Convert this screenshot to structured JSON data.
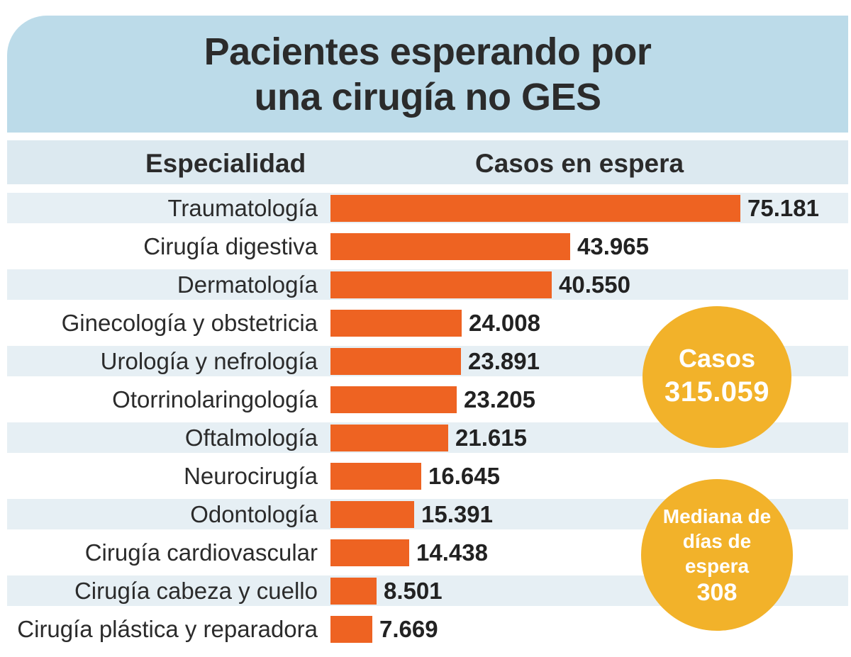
{
  "title": {
    "line1": "Pacientes esperando por",
    "line2": "una cirugía no GES"
  },
  "headers": {
    "category": "Especialidad",
    "value": "Casos en espera"
  },
  "chart_data": {
    "type": "bar",
    "orientation": "horizontal",
    "title": "Pacientes esperando por una cirugía no GES",
    "xlabel": "Casos en espera",
    "ylabel": "Especialidad",
    "categories": [
      "Traumatología",
      "Cirugía digestiva",
      "Dermatología",
      "Ginecología y obstetricia",
      "Urología y nefrología",
      "Otorrinolaringología",
      "Oftalmología",
      "Neurocirugía",
      "Odontología",
      "Cirugía cardiovascular",
      "Cirugía cabeza y cuello",
      "Cirugía plástica y reparadora"
    ],
    "values": [
      75181,
      43965,
      40550,
      24008,
      23891,
      23205,
      21615,
      16645,
      15391,
      14438,
      8501,
      7669
    ],
    "value_labels": [
      "75.181",
      "43.965",
      "40.550",
      "24.008",
      "23.891",
      "23.205",
      "21.615",
      "16.645",
      "15.391",
      "14.438",
      "8.501",
      "7.669"
    ],
    "xlim": [
      0,
      75181
    ],
    "grid": false,
    "bar_color": "#ee6322"
  },
  "summary": {
    "cases_label": "Casos",
    "cases_value": "315.059",
    "median_label": "Mediana de días de espera",
    "median_value": "308"
  },
  "colors": {
    "title_background": "#bcdbe9",
    "header_background": "#dce9f0",
    "row_band": "#e6eff4",
    "bar": "#ee6322",
    "circle": "#f2b22a"
  }
}
